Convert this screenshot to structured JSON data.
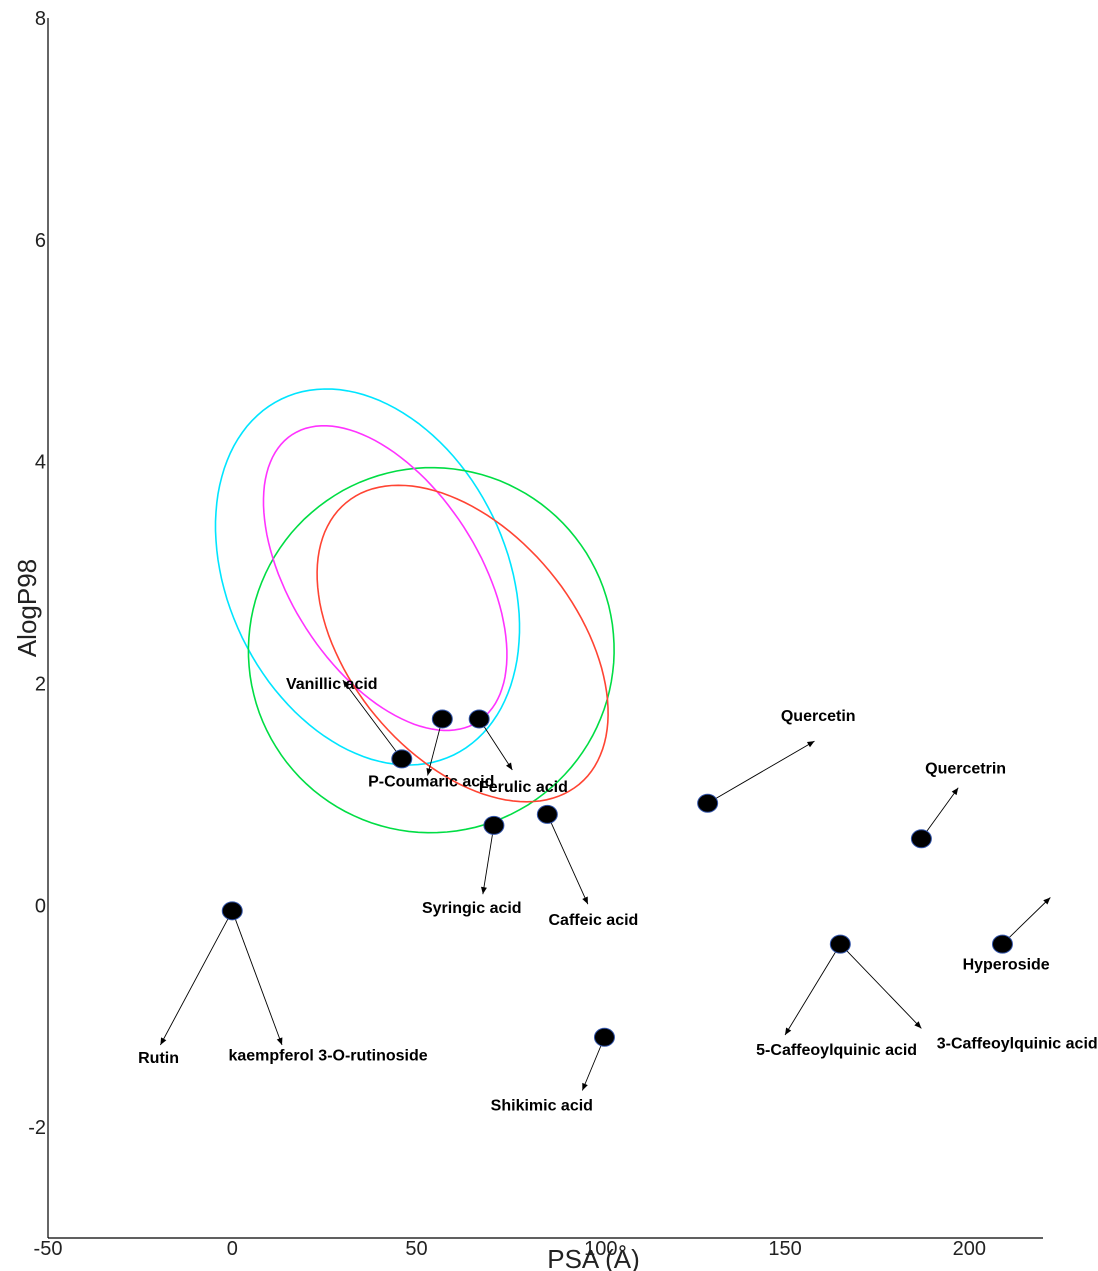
{
  "chart_data": {
    "type": "scatter",
    "title": "",
    "xlabel": "PSA (Å)",
    "ylabel": "AlogP98",
    "xlim": [
      -50,
      220
    ],
    "ylim": [
      -3,
      8
    ],
    "x_ticks": [
      -50,
      0,
      50,
      100,
      150,
      200
    ],
    "y_ticks": [
      -2,
      0,
      2,
      4,
      6,
      8
    ],
    "grid": false,
    "points": [
      {
        "name": "Rutin",
        "x": 0,
        "y": -0.05
      },
      {
        "name": "kaempferol 3-O-rutinoside",
        "x": 0,
        "y": -0.05
      },
      {
        "name": "Vanillic acid",
        "x": 46,
        "y": 1.32
      },
      {
        "name": "P-Coumaric acid",
        "x": 57,
        "y": 1.68
      },
      {
        "name": "Ferulic acid",
        "x": 67,
        "y": 1.68
      },
      {
        "name": "Syringic acid",
        "x": 71,
        "y": 0.72
      },
      {
        "name": "Caffeic acid",
        "x": 85.5,
        "y": 0.82
      },
      {
        "name": "Shikimic acid",
        "x": 101,
        "y": -1.19
      },
      {
        "name": "Quercetin",
        "x": 129,
        "y": 0.92
      },
      {
        "name": "Quercetrin",
        "x": 187,
        "y": 0.6
      },
      {
        "name": "5-Caffeoylquinic acid",
        "x": 165,
        "y": -0.35
      },
      {
        "name": "3-Caffeoylquinic acid",
        "x": 165,
        "y": -0.35
      },
      {
        "name": "Hyperoside",
        "x": 209,
        "y": -0.35
      }
    ],
    "labels": [
      {
        "text": "Rutin",
        "x": -20,
        "y": -1.42,
        "point": 0,
        "arrow_to": [
          -19.5,
          -1.26
        ]
      },
      {
        "text": "kaempferol 3-O-rutinoside",
        "x": 26,
        "y": -1.4,
        "point": 1,
        "arrow_to": [
          13.5,
          -1.26
        ]
      },
      {
        "text": "Vanillic acid",
        "x": 27,
        "y": 1.95,
        "point": 2,
        "arrow_to": [
          30,
          2.03
        ]
      },
      {
        "text": "P-Coumaric acid",
        "x": 54,
        "y": 1.07,
        "point": 3,
        "arrow_to": [
          53,
          1.17
        ]
      },
      {
        "text": "Ferulic acid",
        "x": 79,
        "y": 1.02,
        "point": 4,
        "arrow_to": [
          76,
          1.22
        ]
      },
      {
        "text": "Syringic acid",
        "x": 65,
        "y": -0.07,
        "point": 5,
        "arrow_to": [
          68,
          0.1
        ]
      },
      {
        "text": "Caffeic acid",
        "x": 98,
        "y": -0.18,
        "point": 6,
        "arrow_to": [
          96.5,
          0.01
        ]
      },
      {
        "text": "Shikimic acid",
        "x": 84,
        "y": -1.85,
        "point": 7,
        "arrow_to": [
          95,
          -1.67
        ]
      },
      {
        "text": "Quercetin",
        "x": 159,
        "y": 1.66,
        "point": 8,
        "arrow_to": [
          158,
          1.48
        ]
      },
      {
        "text": "Quercetrin",
        "x": 199,
        "y": 1.19,
        "point": 9,
        "arrow_to": [
          197,
          1.06
        ]
      },
      {
        "text": "5-Caffeoylquinic acid",
        "x": 164,
        "y": -1.35,
        "point": 10,
        "arrow_to": [
          150,
          -1.17
        ]
      },
      {
        "text": "3-Caffeoylquinic acid",
        "x": 213,
        "y": -1.29,
        "point": 11,
        "arrow_to": [
          187,
          -1.11
        ]
      },
      {
        "text": "Hyperoside",
        "x": 210,
        "y": -0.58,
        "point": 12,
        "arrow_to": [
          222,
          0.07
        ]
      }
    ],
    "ellipses": [
      {
        "name": "cyan",
        "color": "#00e5ff",
        "cx": 36.7,
        "cy": 2.96,
        "rx": 107.3,
        "ry": 2.51,
        "angle_deg": -64.2
      },
      {
        "name": "green",
        "color": "#00dd44",
        "cx": 54,
        "cy": 2.3,
        "rx": 99,
        "ry": 3.3,
        "angle_deg": -61
      },
      {
        "name": "magenta",
        "color": "#ff33ff",
        "cx": 41.5,
        "cy": 2.95,
        "rx": 92.8,
        "ry": 1.69,
        "angle_deg": -57.1
      },
      {
        "name": "red",
        "color": "#ff4433",
        "cx": 62.5,
        "cy": 2.36,
        "rx": 99.2,
        "ry": 2.04,
        "angle_deg": -50.4
      }
    ]
  }
}
